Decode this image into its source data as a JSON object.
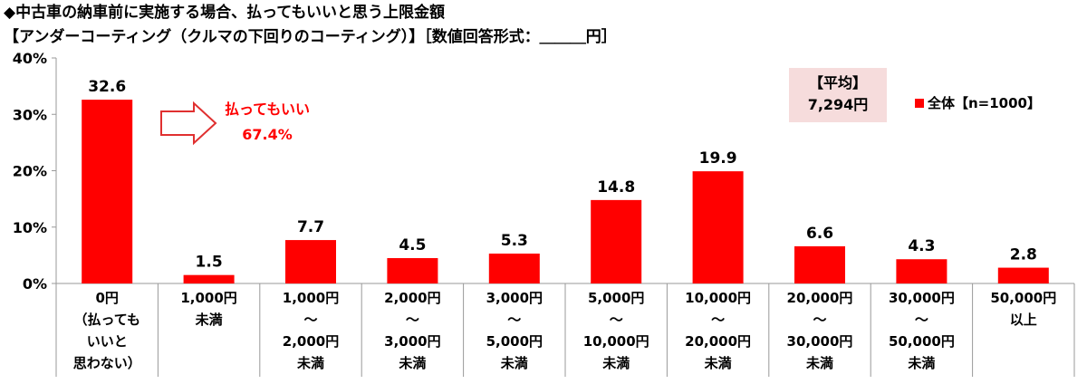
{
  "title_line1": "◆中古車の納車前に実施する場合、払ってもいいと思う上限金額",
  "title_line2": "【アンダーコーティング（クルマの下回りのコーティング）】［数値回答形式：＿＿＿円］",
  "annotation": {
    "label": "払ってもいい",
    "value": "67.4%"
  },
  "average": {
    "label": "【平均】",
    "value": "7,294円"
  },
  "legend": {
    "label": "全体【n=1000】"
  },
  "colors": {
    "bar": "#ff0000",
    "annotation": "#ff0000",
    "average_box": "#f6dcdc"
  },
  "chart_data": {
    "type": "bar",
    "title": "◆中古車の納車前に実施する場合、払ってもいいと思う上限金額",
    "ylim": [
      0,
      40
    ],
    "y_ticks": [
      "0%",
      "10%",
      "20%",
      "30%",
      "40%"
    ],
    "grid": false,
    "legend_position": "top-right",
    "categories": [
      [
        "0円",
        "（払ってもいいと思わない）"
      ],
      [
        "1,000円未満"
      ],
      [
        "1,000円",
        "～",
        "2,000円未満"
      ],
      [
        "2,000円",
        "～",
        "3,000円未満"
      ],
      [
        "3,000円",
        "～",
        "5,000円未満"
      ],
      [
        "5,000円",
        "～",
        "10,000円未満"
      ],
      [
        "10,000円",
        "～",
        "20,000円未満"
      ],
      [
        "20,000円",
        "～",
        "30,000円未満"
      ],
      [
        "30,000円",
        "～",
        "50,000円未満"
      ],
      [
        "50,000円以上"
      ]
    ],
    "series": [
      {
        "name": "全体【n=1000】",
        "values": [
          32.6,
          1.5,
          7.7,
          4.5,
          5.3,
          14.8,
          19.9,
          6.6,
          4.3,
          2.8
        ],
        "labels": [
          "32.6",
          "1.5",
          "7.7",
          "4.5",
          "5.3",
          "14.8",
          "19.9",
          "6.6",
          "4.3",
          "2.8"
        ]
      }
    ]
  }
}
